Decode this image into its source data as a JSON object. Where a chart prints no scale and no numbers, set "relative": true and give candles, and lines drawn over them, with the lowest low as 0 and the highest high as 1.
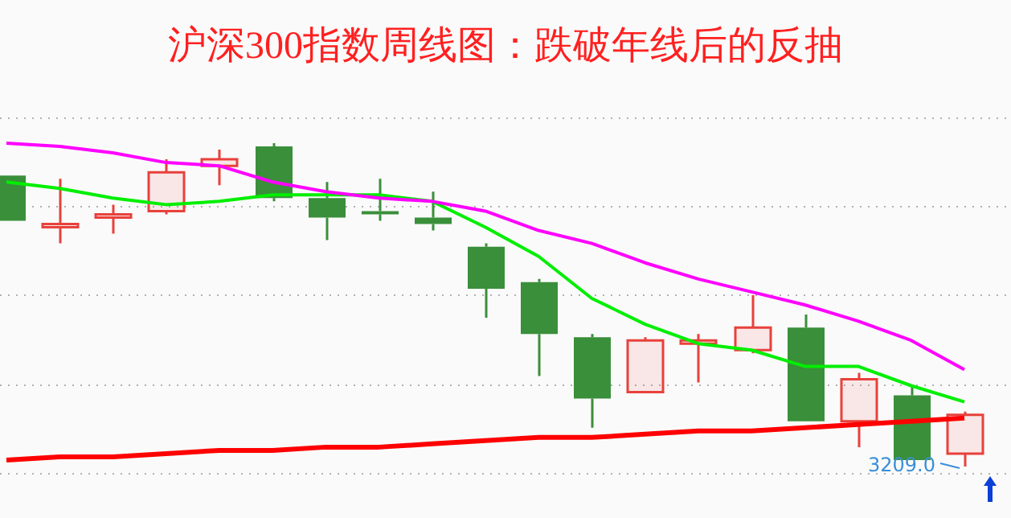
{
  "chart_data": {
    "type": "candlestick",
    "title": "沪深300指数周线图：跌破年线后的反抽",
    "relative": true,
    "tick_labels": false,
    "legend": false,
    "grid": "y",
    "categories": [
      null,
      null,
      null,
      null,
      null,
      null,
      null,
      null,
      null,
      null,
      null,
      null,
      null,
      null,
      null,
      null,
      null,
      null,
      null
    ],
    "ohlc": [
      [
        0.9,
        0.9,
        0.76,
        0.76
      ],
      [
        0.74,
        0.89,
        0.69,
        0.75
      ],
      [
        0.77,
        0.81,
        0.72,
        0.78
      ],
      [
        0.79,
        0.95,
        0.78,
        0.91
      ],
      [
        0.93,
        0.98,
        0.87,
        0.95
      ],
      [
        0.99,
        1.0,
        0.82,
        0.83
      ],
      [
        0.83,
        0.88,
        0.7,
        0.77
      ],
      [
        0.79,
        0.89,
        0.76,
        0.78
      ],
      [
        0.77,
        0.85,
        0.73,
        0.75
      ],
      [
        0.68,
        0.69,
        0.46,
        0.55
      ],
      [
        0.57,
        0.58,
        0.28,
        0.41
      ],
      [
        0.4,
        0.41,
        0.12,
        0.21
      ],
      [
        0.23,
        0.4,
        0.23,
        0.39
      ],
      [
        0.38,
        0.41,
        0.26,
        0.39
      ],
      [
        0.36,
        0.53,
        0.35,
        0.43
      ],
      [
        0.43,
        0.47,
        0.14,
        0.14
      ],
      [
        0.14,
        0.29,
        0.06,
        0.27
      ],
      [
        0.22,
        0.25,
        0.02,
        0.02
      ],
      [
        0.04,
        0.17,
        0.0,
        0.16
      ]
    ],
    "colors": [
      "#3a8f3a",
      "#e8413c",
      "#e8413c",
      "#e8413c",
      "#e8413c",
      "#3a8f3a",
      "#3a8f3a",
      "#3a8f3a",
      "#3a8f3a",
      "#3a8f3a",
      "#3a8f3a",
      "#3a8f3a",
      "#e8413c",
      "#e8413c",
      "#e8413c",
      "#3a8f3a",
      "#e8413c",
      "#3a8f3a",
      "#e8413c"
    ],
    "series": [
      {
        "type": "line",
        "color": "#ff00ff",
        "values": [
          1.0,
          0.99,
          0.97,
          0.94,
          0.93,
          0.88,
          0.85,
          0.83,
          0.82,
          0.79,
          0.73,
          0.69,
          0.63,
          0.58,
          0.54,
          0.5,
          0.45,
          0.39,
          0.3
        ]
      },
      {
        "type": "line",
        "color": "#00ee00",
        "values": [
          0.88,
          0.86,
          0.83,
          0.81,
          0.82,
          0.84,
          0.84,
          0.84,
          0.82,
          0.74,
          0.65,
          0.52,
          0.44,
          0.38,
          0.36,
          0.31,
          0.31,
          0.25,
          0.2
        ]
      },
      {
        "type": "line",
        "color": "#ff0000",
        "values": [
          0.02,
          0.03,
          0.03,
          0.04,
          0.05,
          0.05,
          0.06,
          0.06,
          0.07,
          0.08,
          0.09,
          0.09,
          0.1,
          0.11,
          0.11,
          0.12,
          0.13,
          0.14,
          0.15
        ]
      }
    ],
    "annotations": [
      "3209.0"
    ]
  }
}
